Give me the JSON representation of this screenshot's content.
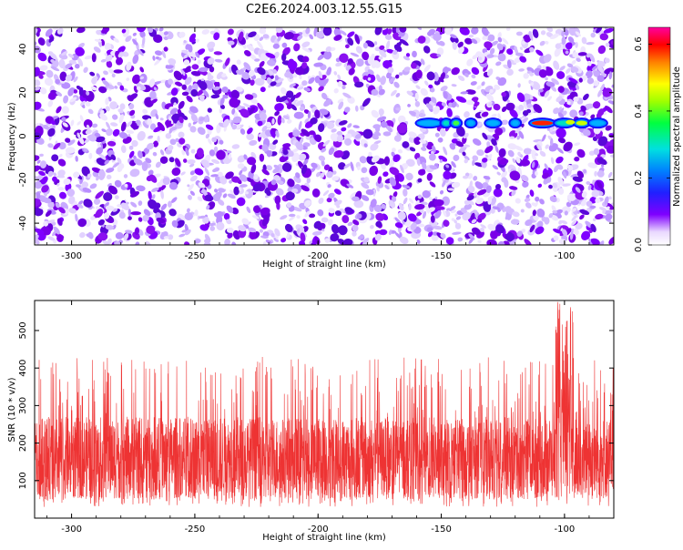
{
  "title": "C2E6.2024.003.12.55.G15",
  "chart_data": [
    {
      "type": "heatmap",
      "title": "C2E6.2024.003.12.55.G15",
      "xlabel": "Height of straight line (km)",
      "ylabel": "Frequency (Hz)",
      "xlim": [
        -315,
        -80
      ],
      "ylim": [
        -50,
        50
      ],
      "x_ticks": [
        "-300",
        "-250",
        "-200",
        "-150",
        "-100"
      ],
      "y_ticks": [
        "-40",
        "-20",
        "0",
        "20",
        "40"
      ],
      "colorbar": {
        "label": "Normalized spectral amplitude",
        "range": [
          0,
          0.65
        ],
        "ticks": [
          "0.0",
          "0.2",
          "0.4",
          "0.6"
        ],
        "colormap": "rainbow (white-purple-blue-cyan-green-yellow-red-magenta)"
      },
      "background_level": "0.0-0.15 (purple speckle)",
      "feature": {
        "description": "bright horizontal streak near 6 Hz",
        "freq_hz": 6,
        "x_range": [
          -160,
          -82
        ],
        "peak_amplitude": 0.55,
        "peak_x": -108
      }
    },
    {
      "type": "line",
      "xlabel": "Height of straight line (km)",
      "ylabel": "SNR (10 * v/v)",
      "xlim": [
        -315,
        -80
      ],
      "ylim": [
        0,
        580
      ],
      "x_ticks": [
        "-300",
        "-250",
        "-200",
        "-150",
        "-100"
      ],
      "y_ticks": [
        "100",
        "200",
        "300",
        "400",
        "500"
      ],
      "color": "#ee3333",
      "baseline_range": [
        40,
        420
      ],
      "typical_center": 160,
      "peak": {
        "x": -100,
        "y": 580
      }
    }
  ]
}
